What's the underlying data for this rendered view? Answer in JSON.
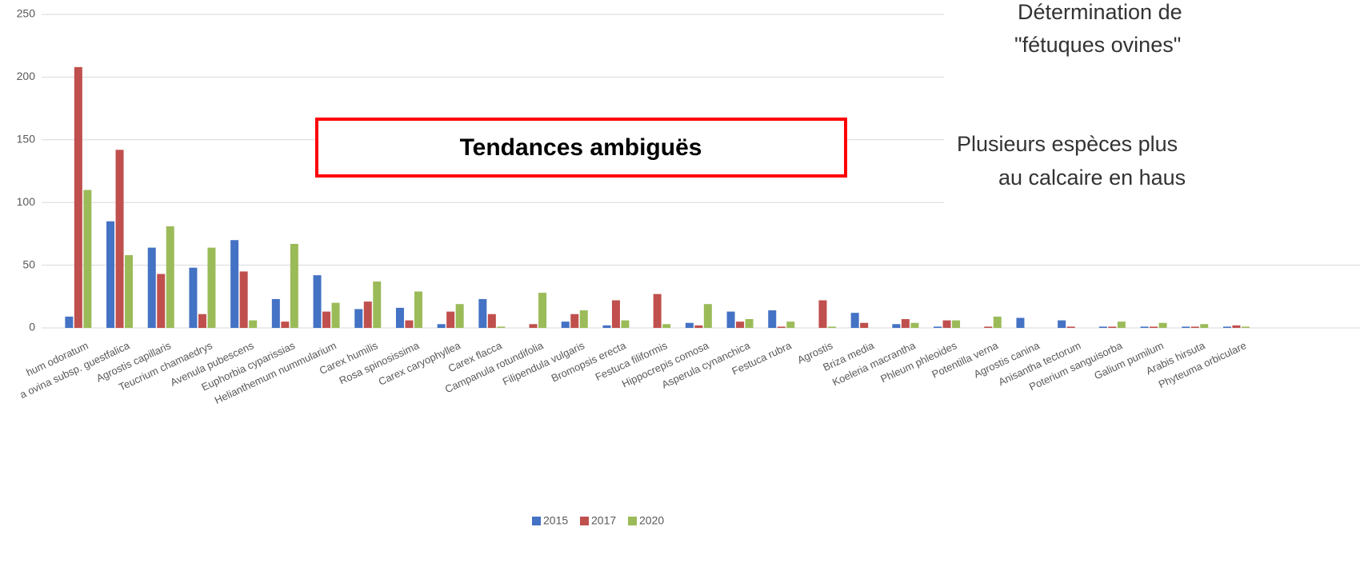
{
  "chart_data": {
    "type": "bar",
    "categories": [
      "hum odoratum",
      "a ovina subsp. guestfalica",
      "Agrostis capillaris",
      "Teucrium chamaedrys",
      "Avenula pubescens",
      "Euphorbia cyparissias",
      "Helianthemum nummularium",
      "Carex humilis",
      "Rosa spinosissima",
      "Carex caryophyllea",
      "Carex flacca",
      "Campanula rotundifolia",
      "Filipendula vulgaris",
      "Bromopsis erecta",
      "Festuca filiformis",
      "Hippocrepis comosa",
      "Asperula cynanchica",
      "Festuca rubra",
      "Agrostis",
      "Briza media",
      "Koeleria macrantha",
      "Phleum phleoides",
      "Potentilla verna",
      "Agrostis canina",
      "Anisantha tectorum",
      "Poterium sanguisorba",
      "Galium pumilum",
      "Arabis hirsuta",
      "Phyteuma orbiculare"
    ],
    "series": [
      {
        "name": "2015",
        "color": "#4472c4",
        "values": [
          9,
          85,
          64,
          48,
          70,
          23,
          42,
          15,
          16,
          3,
          23,
          0,
          5,
          2,
          0,
          4,
          13,
          14,
          0,
          12,
          3,
          1,
          0,
          8,
          6,
          1,
          1,
          1,
          1
        ]
      },
      {
        "name": "2017",
        "color": "#c0504d",
        "values": [
          208,
          142,
          43,
          11,
          45,
          5,
          13,
          21,
          6,
          13,
          11,
          3,
          11,
          22,
          27,
          2,
          5,
          1,
          22,
          4,
          7,
          6,
          1,
          0,
          1,
          1,
          1,
          1,
          2
        ]
      },
      {
        "name": "2020",
        "color": "#9bbb59",
        "values": [
          110,
          58,
          81,
          64,
          6,
          67,
          20,
          37,
          29,
          19,
          1,
          28,
          14,
          6,
          3,
          19,
          7,
          5,
          1,
          0,
          4,
          6,
          9,
          0,
          0,
          5,
          4,
          3,
          1
        ]
      }
    ],
    "ylim": [
      0,
      250
    ],
    "yticks": [
      0,
      50,
      100,
      150,
      200,
      250
    ],
    "grid": true,
    "legend": "bottom",
    "annotation": "Tendances ambiguës",
    "side_text": [
      "Détermination de",
      "\"fétuques ovines\"",
      "Plusieurs espèces plus",
      "au calcaire en haus"
    ]
  }
}
